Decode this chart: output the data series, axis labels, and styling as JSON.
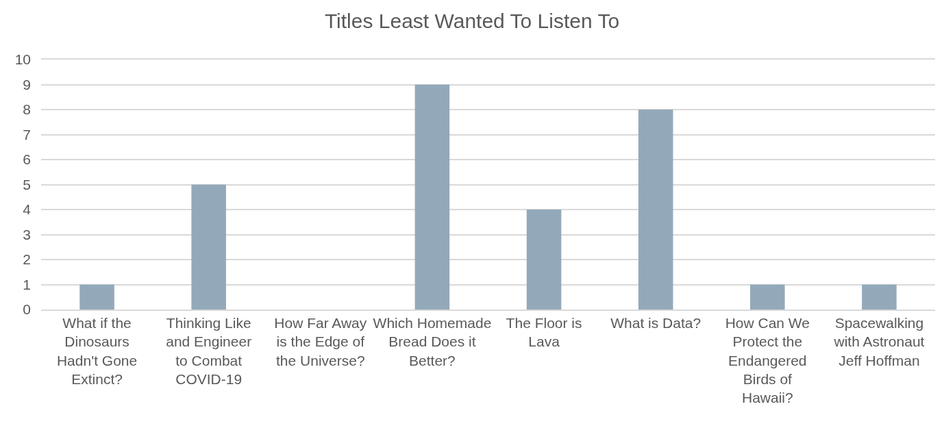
{
  "chart_data": {
    "type": "bar",
    "title": "Titles Least Wanted To Listen To",
    "categories": [
      "What if the Dinosaurs Hadn't Gone Extinct?",
      "Thinking Like and Engineer to Combat COVID-19",
      "How Far Away is the Edge of the Universe?",
      "Which Homemade Bread Does it Better?",
      "The Floor is Lava",
      "What is Data?",
      "How Can We Protect the Endangered Birds of Hawaii?",
      "Spacewalking with Astronaut Jeff Hoffman"
    ],
    "values": [
      1,
      5,
      0,
      9,
      4,
      8,
      1,
      1
    ],
    "color": "#93a9b9",
    "ylim": [
      0,
      10
    ],
    "yticks": [
      0,
      1,
      2,
      3,
      4,
      5,
      6,
      7,
      8,
      9,
      10
    ],
    "grid": "y"
  }
}
